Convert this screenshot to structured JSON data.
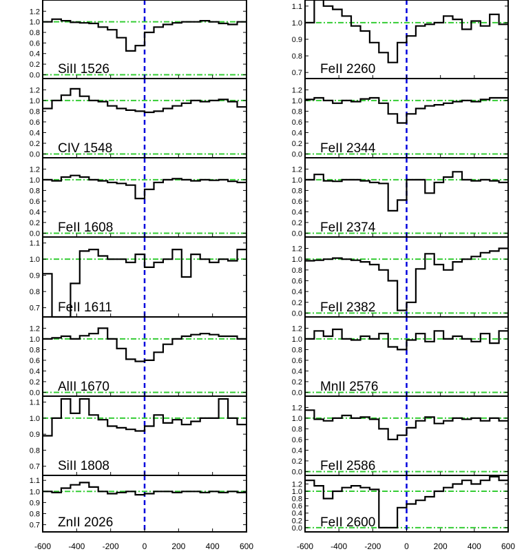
{
  "chart_data": {
    "type": "line",
    "colors": {
      "spectrum": "#000000",
      "continuum": "#33cc33",
      "zero_velocity": "#0000dd"
    },
    "x_ticks": [
      "-600",
      "-400",
      "-200",
      "0",
      "200",
      "400",
      "600"
    ],
    "x_ticks_right": [
      "-600",
      "-400",
      "-200",
      "0",
      "200",
      "400",
      "600"
    ],
    "panels": [
      {
        "label": "SiII 1526",
        "column": 0,
        "row": 0,
        "ylim": [
          -0.02,
          1.36
        ],
        "yticks": [
          {
            "v": 0.0,
            "t": "0.0"
          },
          {
            "v": 0.2,
            "t": "0.2"
          },
          {
            "v": 0.4,
            "t": "0.4"
          },
          {
            "v": 0.6,
            "t": "0.6"
          },
          {
            "v": 0.8,
            "t": "0.8"
          },
          {
            "v": 1.0,
            "t": "1.0"
          },
          {
            "v": 1.2,
            "t": "1.2"
          }
        ],
        "ref_lines": [
          0.0,
          1.0
        ],
        "values": [
          1.0,
          1.05,
          1.02,
          0.99,
          0.98,
          0.97,
          0.9,
          0.85,
          0.7,
          0.45,
          0.55,
          0.8,
          0.9,
          0.95,
          0.98,
          1.0,
          1.0,
          1.02,
          1.0,
          0.97,
          0.95,
          1.0
        ]
      },
      {
        "label": "CIV 1548",
        "column": 0,
        "row": 1,
        "ylim": [
          -0.02,
          1.36
        ],
        "yticks": [
          {
            "v": 0.0,
            "t": "0.0"
          },
          {
            "v": 0.2,
            "t": "0.2"
          },
          {
            "v": 0.4,
            "t": "0.4"
          },
          {
            "v": 0.6,
            "t": "0.6"
          },
          {
            "v": 0.8,
            "t": "0.8"
          },
          {
            "v": 1.0,
            "t": "1.0"
          },
          {
            "v": 1.2,
            "t": "1.2"
          }
        ],
        "ref_lines": [
          0.0,
          1.0
        ],
        "values": [
          0.85,
          1.0,
          1.1,
          1.22,
          1.08,
          1.0,
          0.98,
          0.9,
          0.85,
          0.82,
          0.8,
          0.78,
          0.8,
          0.85,
          0.9,
          0.95,
          1.0,
          0.98,
          1.0,
          1.02,
          0.98,
          0.88
        ]
      },
      {
        "label": "FeII 1608",
        "column": 0,
        "row": 2,
        "ylim": [
          -0.02,
          1.36
        ],
        "yticks": [
          {
            "v": 0.0,
            "t": "0.0"
          },
          {
            "v": 0.2,
            "t": "0.2"
          },
          {
            "v": 0.4,
            "t": "0.4"
          },
          {
            "v": 0.6,
            "t": "0.6"
          },
          {
            "v": 0.8,
            "t": "0.8"
          },
          {
            "v": 1.0,
            "t": "1.0"
          },
          {
            "v": 1.2,
            "t": "1.2"
          }
        ],
        "ref_lines": [
          0.0,
          1.0
        ],
        "values": [
          1.0,
          0.98,
          1.05,
          1.08,
          1.05,
          1.0,
          0.98,
          0.95,
          0.93,
          0.9,
          0.65,
          0.82,
          0.95,
          1.0,
          1.02,
          1.0,
          0.98,
          1.0,
          0.99,
          1.0,
          0.97,
          0.95
        ]
      },
      {
        "label": "FeII 1611",
        "column": 0,
        "row": 3,
        "ylim": [
          0.66,
          1.12
        ],
        "yticks": [
          {
            "v": 0.7,
            "t": "0.7"
          },
          {
            "v": 0.8,
            "t": "0.8"
          },
          {
            "v": 0.9,
            "t": "0.9"
          },
          {
            "v": 1.0,
            "t": "1.0"
          },
          {
            "v": 1.1,
            "t": "1.1"
          }
        ],
        "ref_lines": [
          1.0
        ],
        "values": [
          0.91,
          0.6,
          0.6,
          0.85,
          1.05,
          1.06,
          1.02,
          1.0,
          1.0,
          0.98,
          1.03,
          0.95,
          0.98,
          1.0,
          1.06,
          0.89,
          1.03,
          1.0,
          0.98,
          1.0,
          0.99,
          1.06
        ]
      },
      {
        "label": "AlII 1670",
        "column": 0,
        "row": 4,
        "ylim": [
          -0.02,
          1.36
        ],
        "yticks": [
          {
            "v": 0.0,
            "t": "0.0"
          },
          {
            "v": 0.2,
            "t": "0.2"
          },
          {
            "v": 0.4,
            "t": "0.4"
          },
          {
            "v": 0.6,
            "t": "0.6"
          },
          {
            "v": 0.8,
            "t": "0.8"
          },
          {
            "v": 1.0,
            "t": "1.0"
          },
          {
            "v": 1.2,
            "t": "1.2"
          }
        ],
        "ref_lines": [
          0.0,
          1.0
        ],
        "values": [
          1.0,
          1.02,
          1.05,
          1.0,
          1.06,
          1.1,
          1.2,
          1.0,
          0.82,
          0.62,
          0.58,
          0.6,
          0.75,
          0.9,
          1.0,
          1.05,
          1.08,
          1.1,
          1.08,
          1.05,
          1.05,
          1.0
        ]
      },
      {
        "label": "SiII 1808",
        "column": 0,
        "row": 5,
        "ylim": [
          0.66,
          1.12
        ],
        "yticks": [
          {
            "v": 0.7,
            "t": "0.7"
          },
          {
            "v": 0.8,
            "t": "0.8"
          },
          {
            "v": 0.9,
            "t": "0.9"
          },
          {
            "v": 1.0,
            "t": "1.0"
          },
          {
            "v": 1.1,
            "t": "1.1"
          }
        ],
        "ref_lines": [
          1.0
        ],
        "values": [
          0.89,
          1.0,
          1.12,
          1.03,
          1.12,
          1.02,
          0.99,
          0.95,
          0.94,
          0.93,
          0.92,
          0.95,
          1.02,
          0.97,
          0.99,
          0.96,
          0.98,
          1.0,
          1.0,
          1.12,
          1.0,
          0.96
        ]
      },
      {
        "label": "ZnII 2026",
        "column": 0,
        "row": 6,
        "ylim": [
          0.66,
          1.12
        ],
        "yticks": [
          {
            "v": 0.7,
            "t": "0.7"
          },
          {
            "v": 0.8,
            "t": "0.8"
          },
          {
            "v": 0.9,
            "t": "0.9"
          },
          {
            "v": 1.0,
            "t": "1.0"
          },
          {
            "v": 1.1,
            "t": "1.1"
          }
        ],
        "ref_lines": [
          1.0
        ],
        "values": [
          1.0,
          0.99,
          1.03,
          1.06,
          1.08,
          1.04,
          1.0,
          0.98,
          0.99,
          1.0,
          0.97,
          0.98,
          1.0,
          1.0,
          0.99,
          1.0,
          1.0,
          0.99,
          1.0,
          0.99,
          1.0,
          0.99
        ]
      },
      {
        "label": "FeII 2260",
        "column": 1,
        "row": 0,
        "ylim": [
          0.68,
          1.12
        ],
        "yticks": [
          {
            "v": 0.7,
            "t": "0.7"
          },
          {
            "v": 0.8,
            "t": "0.8"
          },
          {
            "v": 0.9,
            "t": "0.9"
          },
          {
            "v": 1.0,
            "t": "1.0"
          },
          {
            "v": 1.1,
            "t": "1.1"
          }
        ],
        "ref_lines": [
          1.0
        ],
        "values": [
          1.0,
          1.2,
          1.1,
          1.08,
          1.04,
          0.98,
          0.95,
          0.88,
          0.82,
          0.76,
          0.88,
          0.92,
          0.98,
          0.99,
          1.0,
          1.04,
          1.02,
          0.96,
          1.01,
          0.98,
          1.05,
          0.99
        ]
      },
      {
        "label": "FeII 2344",
        "column": 1,
        "row": 1,
        "ylim": [
          -0.02,
          1.36
        ],
        "yticks": [
          {
            "v": 0.0,
            "t": "0.0"
          },
          {
            "v": 0.2,
            "t": "0.2"
          },
          {
            "v": 0.4,
            "t": "0.4"
          },
          {
            "v": 0.6,
            "t": "0.6"
          },
          {
            "v": 0.8,
            "t": "0.8"
          },
          {
            "v": 1.0,
            "t": "1.0"
          },
          {
            "v": 1.2,
            "t": "1.2"
          }
        ],
        "ref_lines": [
          0.0,
          1.0
        ],
        "values": [
          1.02,
          1.05,
          1.0,
          0.95,
          1.0,
          0.98,
          1.03,
          1.05,
          0.95,
          0.75,
          0.58,
          0.75,
          0.85,
          0.9,
          0.92,
          0.95,
          0.98,
          1.0,
          0.98,
          1.02,
          1.05,
          1.05
        ]
      },
      {
        "label": "FeII 2374",
        "column": 1,
        "row": 2,
        "ylim": [
          -0.02,
          1.36
        ],
        "yticks": [
          {
            "v": 0.0,
            "t": "0.0"
          },
          {
            "v": 0.2,
            "t": "0.2"
          },
          {
            "v": 0.4,
            "t": "0.4"
          },
          {
            "v": 0.6,
            "t": "0.6"
          },
          {
            "v": 0.8,
            "t": "0.8"
          },
          {
            "v": 1.0,
            "t": "1.0"
          },
          {
            "v": 1.2,
            "t": "1.2"
          }
        ],
        "ref_lines": [
          0.0,
          1.0
        ],
        "values": [
          1.0,
          1.1,
          0.98,
          0.97,
          1.0,
          1.0,
          0.98,
          0.95,
          0.93,
          0.42,
          0.62,
          1.0,
          1.0,
          0.75,
          0.95,
          1.05,
          1.15,
          1.0,
          0.98,
          1.0,
          0.98,
          0.95
        ]
      },
      {
        "label": "FeII 2382",
        "column": 1,
        "row": 3,
        "ylim": [
          -0.02,
          1.36
        ],
        "yticks": [
          {
            "v": 0.0,
            "t": "0.0"
          },
          {
            "v": 0.2,
            "t": "0.2"
          },
          {
            "v": 0.4,
            "t": "0.4"
          },
          {
            "v": 0.6,
            "t": "0.6"
          },
          {
            "v": 0.8,
            "t": "0.8"
          },
          {
            "v": 1.0,
            "t": "1.0"
          },
          {
            "v": 1.2,
            "t": "1.2"
          }
        ],
        "ref_lines": [
          0.0,
          1.0
        ],
        "values": [
          0.97,
          0.98,
          1.0,
          1.02,
          1.0,
          0.98,
          0.95,
          0.9,
          0.8,
          0.6,
          0.05,
          0.2,
          0.82,
          1.1,
          0.9,
          0.8,
          0.95,
          1.0,
          1.05,
          1.12,
          1.15,
          1.2
        ]
      },
      {
        "label": "MnII 2576",
        "column": 1,
        "row": 4,
        "ylim": [
          -0.02,
          1.36
        ],
        "yticks": [
          {
            "v": 0.0,
            "t": "0.0"
          },
          {
            "v": 0.2,
            "t": "0.2"
          },
          {
            "v": 0.4,
            "t": "0.4"
          },
          {
            "v": 0.6,
            "t": "0.6"
          },
          {
            "v": 0.8,
            "t": "0.8"
          },
          {
            "v": 1.0,
            "t": "1.0"
          },
          {
            "v": 1.2,
            "t": "1.2"
          }
        ],
        "ref_lines": [
          0.0,
          1.0
        ],
        "values": [
          1.0,
          1.15,
          1.05,
          1.18,
          1.0,
          0.98,
          1.05,
          1.0,
          1.1,
          0.85,
          0.8,
          0.98,
          1.1,
          0.95,
          1.15,
          1.0,
          1.05,
          1.0,
          0.95,
          1.1,
          0.92,
          1.15
        ]
      },
      {
        "label": "FeII 2586",
        "column": 1,
        "row": 5,
        "ylim": [
          -0.02,
          1.36
        ],
        "yticks": [
          {
            "v": 0.0,
            "t": "0.0"
          },
          {
            "v": 0.2,
            "t": "0.2"
          },
          {
            "v": 0.4,
            "t": "0.4"
          },
          {
            "v": 0.6,
            "t": "0.6"
          },
          {
            "v": 0.8,
            "t": "0.8"
          },
          {
            "v": 1.0,
            "t": "1.0"
          },
          {
            "v": 1.2,
            "t": "1.2"
          }
        ],
        "ref_lines": [
          0.0,
          1.0
        ],
        "values": [
          1.15,
          0.98,
          0.95,
          1.0,
          1.05,
          1.0,
          1.02,
          0.98,
          0.8,
          0.6,
          0.68,
          0.82,
          0.95,
          1.02,
          0.9,
          0.95,
          1.0,
          0.98,
          1.0,
          0.95,
          1.0,
          0.95
        ]
      },
      {
        "label": "FeII 2600",
        "column": 1,
        "row": 6,
        "ylim": [
          -0.04,
          1.36
        ],
        "yticks": [
          {
            "v": 0.0,
            "t": "0.0"
          },
          {
            "v": 0.2,
            "t": "0.2"
          },
          {
            "v": 0.4,
            "t": "0.4"
          },
          {
            "v": 0.6,
            "t": "0.6"
          },
          {
            "v": 0.8,
            "t": "0.8"
          },
          {
            "v": 1.0,
            "t": "1.0"
          },
          {
            "v": 1.2,
            "t": "1.2"
          }
        ],
        "ref_lines": [
          0.0,
          1.0
        ],
        "values": [
          1.3,
          1.15,
          0.8,
          1.0,
          1.1,
          1.15,
          1.1,
          1.05,
          0.0,
          0.0,
          0.55,
          0.65,
          0.75,
          0.85,
          1.0,
          1.1,
          1.2,
          1.3,
          1.2,
          1.3,
          1.4,
          1.3
        ]
      }
    ]
  }
}
